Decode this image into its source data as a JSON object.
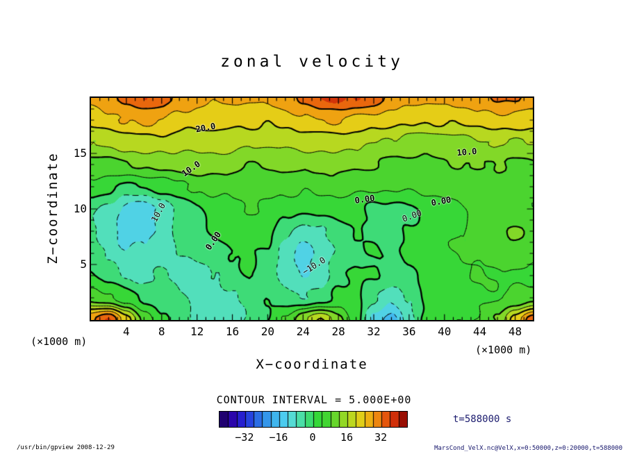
{
  "title": "zonal velocity",
  "axes": {
    "x_label": "X−coordinate",
    "y_label": "Z−coordinate",
    "x_unit_left": "(×1000 m)",
    "x_unit_right": "(×1000 m)",
    "x_ticks": [
      4,
      8,
      12,
      16,
      20,
      24,
      28,
      32,
      36,
      40,
      44,
      48
    ],
    "y_ticks": [
      5,
      10,
      15
    ]
  },
  "annotations": {
    "contour_interval": "CONTOUR INTERVAL = 5.000E+00",
    "time_label": "t=588000 s",
    "footer_left": "/usr/bin/gpview  2008-12-29",
    "footer_right": "MarsCond_VelX.nc@VelX,x=0:50000,z=0:20000,t=588000"
  },
  "colorbar": {
    "range": [
      -44,
      44
    ],
    "quantize_step": 4,
    "ticks": [
      {
        "v": -32,
        "label": "−32"
      },
      {
        "v": -16,
        "label": "−16"
      },
      {
        "v": 0,
        "label": "0"
      },
      {
        "v": 16,
        "label": "16"
      },
      {
        "v": 32,
        "label": "32"
      }
    ],
    "stops": [
      [
        0,
        "#180050"
      ],
      [
        0.06,
        "#2c00a4"
      ],
      [
        0.13,
        "#2428dc"
      ],
      [
        0.2,
        "#2a6ae4"
      ],
      [
        0.27,
        "#38a8ec"
      ],
      [
        0.34,
        "#4cccf0"
      ],
      [
        0.4,
        "#58e0cc"
      ],
      [
        0.46,
        "#40dc86"
      ],
      [
        0.52,
        "#34d838"
      ],
      [
        0.58,
        "#46d430"
      ],
      [
        0.64,
        "#80d828"
      ],
      [
        0.7,
        "#b8d820"
      ],
      [
        0.76,
        "#e8cc16"
      ],
      [
        0.82,
        "#f09c10"
      ],
      [
        0.88,
        "#e85c0c"
      ],
      [
        0.94,
        "#cc2808"
      ],
      [
        1,
        "#7a0000"
      ]
    ]
  },
  "chart_data": {
    "type": "heatmap",
    "title": "zonal velocity",
    "xlabel": "X−coordinate (×1000 m)",
    "ylabel": "Z−coordinate (×1000 m)",
    "x_range": [
      0,
      50
    ],
    "z_range": [
      0,
      20
    ],
    "contour_interval": 5,
    "contour_levels": [
      -15,
      -10,
      -5,
      0,
      5,
      10,
      15,
      20,
      25,
      30
    ],
    "x": [
      0,
      2,
      4,
      6,
      8,
      10,
      12,
      14,
      16,
      18,
      20,
      22,
      24,
      26,
      28,
      30,
      32,
      34,
      36,
      38,
      40,
      42,
      44,
      46,
      48,
      50
    ],
    "z": [
      0,
      2,
      4,
      6,
      8,
      10,
      12,
      14,
      16,
      18,
      20
    ],
    "values": [
      [
        29,
        36,
        22,
        8,
        2,
        -2,
        -6,
        -9,
        -8,
        -4,
        0,
        6,
        14,
        20,
        12,
        2,
        -11,
        -17,
        -8,
        2,
        4,
        5,
        6,
        10,
        22,
        34
      ],
      [
        8,
        6,
        2,
        -1,
        -2,
        -4,
        -6,
        -7,
        -6,
        -3,
        -1,
        -3,
        -5,
        -3,
        2,
        1,
        -4,
        -9,
        -4,
        1,
        3,
        3,
        4,
        5,
        6,
        7
      ],
      [
        1,
        -2,
        -5,
        -6,
        -5,
        -6,
        -7,
        -5,
        -2,
        0,
        -2,
        -7,
        -10,
        -7,
        -2,
        1,
        0,
        -2,
        -1,
        2,
        3,
        4,
        5,
        5,
        4,
        3
      ],
      [
        -2,
        -6,
        -9,
        -9,
        -6,
        -5,
        -5,
        -3,
        0,
        1,
        -1,
        -8,
        -12,
        -9,
        -4,
        -1,
        0,
        -1,
        1,
        3,
        4,
        5,
        6,
        8,
        9,
        7
      ],
      [
        -5,
        -8,
        -13,
        -12,
        -8,
        -4,
        -2,
        1,
        3,
        3,
        1,
        -3,
        -7,
        -6,
        -2,
        0,
        -1,
        -2,
        0,
        2,
        4,
        5,
        7,
        9,
        11,
        9
      ],
      [
        -4,
        -6,
        -12,
        -13,
        -9,
        -4,
        -1,
        2,
        4,
        5,
        4,
        2,
        1,
        2,
        3,
        2,
        -1,
        -2,
        -1,
        1,
        3,
        5,
        6,
        7,
        6,
        5
      ],
      [
        4,
        1,
        -1,
        0,
        2,
        4,
        6,
        7,
        7,
        7,
        7,
        6,
        6,
        7,
        7,
        6,
        5,
        6,
        6,
        7,
        8,
        8,
        8,
        8,
        7,
        7
      ],
      [
        8,
        9,
        10,
        11,
        12,
        12,
        13,
        12,
        11,
        10,
        10,
        11,
        11,
        11,
        12,
        11,
        10,
        9,
        9,
        9,
        9,
        10,
        10,
        10,
        9,
        9
      ],
      [
        15,
        16,
        17,
        18,
        18,
        17,
        17,
        18,
        17,
        16,
        16,
        16,
        17,
        17,
        17,
        16,
        15,
        14,
        13,
        12,
        12,
        13,
        14,
        15,
        15,
        15
      ],
      [
        22,
        23,
        25,
        26,
        25,
        23,
        22,
        22,
        21,
        21,
        21,
        22,
        24,
        25,
        25,
        24,
        23,
        22,
        21,
        20,
        21,
        21,
        22,
        24,
        23,
        22
      ],
      [
        26,
        28,
        32,
        34,
        32,
        29,
        27,
        26,
        26,
        25,
        26,
        28,
        32,
        35,
        36,
        35,
        32,
        29,
        27,
        26,
        26,
        27,
        28,
        31,
        30,
        28
      ]
    ],
    "contour_labels": [
      {
        "text": "20.0",
        "x": 13,
        "z": 17.3,
        "rot": -10,
        "bold": true
      },
      {
        "text": "10.0",
        "x": 11.3,
        "z": 13.6,
        "rot": -35,
        "bold": true
      },
      {
        "text": "10.0",
        "x": 42.5,
        "z": 15.1,
        "rot": -5,
        "bold": true
      },
      {
        "text": "10.0",
        "x": 7.6,
        "z": 9.7,
        "rot": -62,
        "bold": false
      },
      {
        "text": "0.00",
        "x": 13.8,
        "z": 7.1,
        "rot": -55,
        "bold": true
      },
      {
        "text": "0.00",
        "x": 31,
        "z": 10.9,
        "rot": -8,
        "bold": true
      },
      {
        "text": "0.00",
        "x": 36.3,
        "z": 9.4,
        "rot": -20,
        "bold": false
      },
      {
        "text": "0.00",
        "x": 39.6,
        "z": 10.7,
        "rot": -10,
        "bold": true
      },
      {
        "text": "−10.0",
        "x": 25.2,
        "z": 4.9,
        "rot": -32,
        "bold": false
      }
    ]
  }
}
